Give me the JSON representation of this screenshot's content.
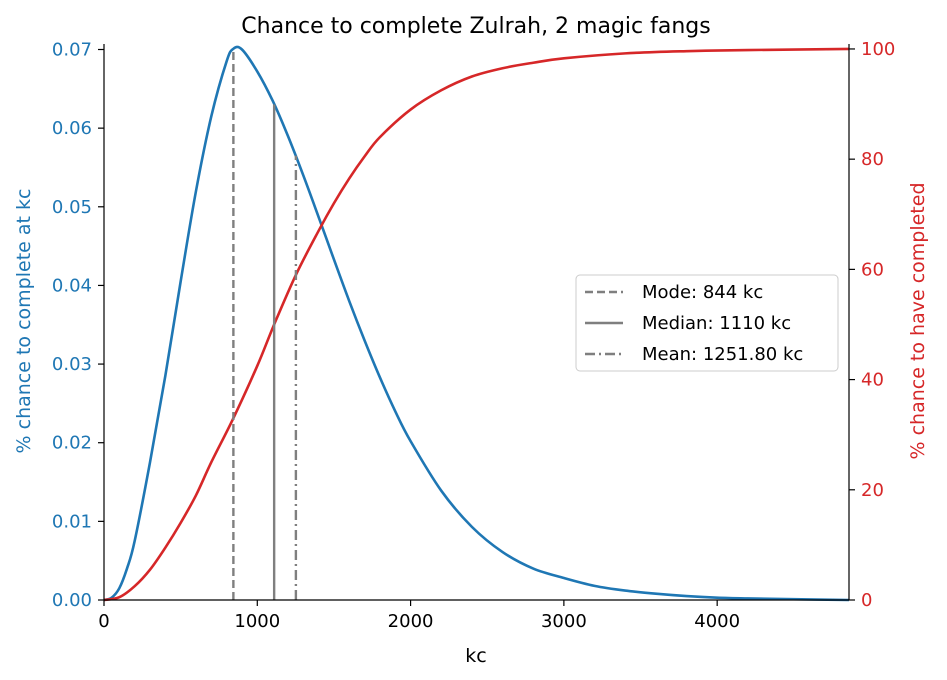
{
  "chart_data": {
    "type": "line",
    "title": "Chance to complete Zulrah, 2 magic fangs",
    "xlabel": "kc",
    "ylabel_left": "% chance to complete at kc",
    "ylabel_right": "% chance to have completed",
    "xlim": [
      0,
      4860
    ],
    "ylim_left": [
      0,
      0.0707
    ],
    "ylim_right": [
      0,
      100.9
    ],
    "x_ticks": [
      0,
      1000,
      2000,
      3000,
      4000
    ],
    "x_tick_labels": [
      "0",
      "1000",
      "2000",
      "3000",
      "4000"
    ],
    "y_left_ticks": [
      0.0,
      0.01,
      0.02,
      0.03,
      0.04,
      0.05,
      0.06,
      0.07
    ],
    "y_left_tick_labels": [
      "0.00",
      "0.01",
      "0.02",
      "0.03",
      "0.04",
      "0.05",
      "0.06",
      "0.07"
    ],
    "y_right_ticks": [
      0,
      20,
      40,
      60,
      80,
      100
    ],
    "y_right_tick_labels": [
      "0",
      "20",
      "40",
      "60",
      "80",
      "100"
    ],
    "series": [
      {
        "axis": "left",
        "color": "#1f77b4",
        "points": [
          [
            0,
            0
          ],
          [
            50,
            0.0003
          ],
          [
            100,
            0.0015
          ],
          [
            150,
            0.004
          ],
          [
            200,
            0.0075
          ],
          [
            300,
            0.0175
          ],
          [
            400,
            0.0285
          ],
          [
            500,
            0.0405
          ],
          [
            600,
            0.052
          ],
          [
            700,
            0.0615
          ],
          [
            800,
            0.0685
          ],
          [
            844,
            0.0701
          ],
          [
            900,
            0.07
          ],
          [
            1000,
            0.0672
          ],
          [
            1100,
            0.0635
          ],
          [
            1200,
            0.059
          ],
          [
            1300,
            0.054
          ],
          [
            1400,
            0.0487
          ],
          [
            1500,
            0.0433
          ],
          [
            1600,
            0.038
          ],
          [
            1700,
            0.033
          ],
          [
            1800,
            0.0283
          ],
          [
            1900,
            0.024
          ],
          [
            2000,
            0.0202
          ],
          [
            2200,
            0.0139
          ],
          [
            2400,
            0.0093
          ],
          [
            2600,
            0.0061
          ],
          [
            2800,
            0.004
          ],
          [
            3000,
            0.0028
          ],
          [
            3200,
            0.0018
          ],
          [
            3400,
            0.0012
          ],
          [
            3600,
            0.0008
          ],
          [
            3800,
            0.0005
          ],
          [
            4000,
            0.0003
          ],
          [
            4200,
            0.0002
          ],
          [
            4500,
            0.0001
          ],
          [
            4860,
            0.0
          ]
        ]
      },
      {
        "axis": "right",
        "color": "#d62728",
        "points": [
          [
            0,
            0
          ],
          [
            100,
            0.5
          ],
          [
            200,
            2.5
          ],
          [
            300,
            5.5
          ],
          [
            400,
            9.5
          ],
          [
            500,
            14
          ],
          [
            600,
            19
          ],
          [
            700,
            25
          ],
          [
            844,
            33
          ],
          [
            1000,
            42.5
          ],
          [
            1110,
            50
          ],
          [
            1251.8,
            59
          ],
          [
            1400,
            67
          ],
          [
            1500,
            72
          ],
          [
            1600,
            76.5
          ],
          [
            1700,
            80.5
          ],
          [
            1800,
            84
          ],
          [
            2000,
            89
          ],
          [
            2200,
            92.5
          ],
          [
            2400,
            95
          ],
          [
            2600,
            96.5
          ],
          [
            2800,
            97.5
          ],
          [
            3000,
            98.3
          ],
          [
            3400,
            99.2
          ],
          [
            3800,
            99.6
          ],
          [
            4200,
            99.8
          ],
          [
            4860,
            100
          ]
        ]
      }
    ],
    "markers": [
      {
        "label": "Mode: 844 kc",
        "x": 844,
        "top": 0.0701,
        "style": "dashed",
        "color": "#7f7f7f"
      },
      {
        "label": "Median: 1110 kc",
        "x": 1110,
        "top": 0.063,
        "style": "solid",
        "color": "#7f7f7f"
      },
      {
        "label": "Mean: 1251.80 kc",
        "x": 1251.8,
        "top": 0.0565,
        "style": "dashdot",
        "color": "#7f7f7f"
      }
    ],
    "legend_position": "center-right",
    "grid": false
  }
}
